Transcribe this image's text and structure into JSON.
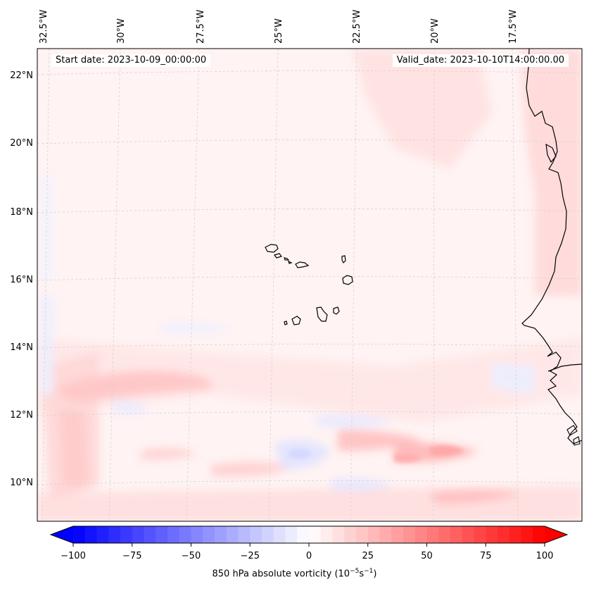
{
  "header": {
    "start_date": "Start date: 2023-10-09_00:00:00",
    "valid_date": "Valid_date: 2023-10-10T14:00:00.00"
  },
  "axes": {
    "longitude_labels": [
      "32.5°W",
      "30°W",
      "27.5°W",
      "25°W",
      "22.5°W",
      "20°W",
      "17.5°W"
    ],
    "latitude_labels": [
      "22°N",
      "20°N",
      "18°N",
      "16°N",
      "14°N",
      "12°N",
      "10°N"
    ],
    "gridlines": true
  },
  "colorbar": {
    "ticks": [
      "−100",
      "−75",
      "−50",
      "−25",
      "0",
      "25",
      "50",
      "75",
      "100"
    ],
    "range": [
      -100,
      100
    ],
    "extend": "both",
    "colormap": "bwr",
    "low_color": "#0000ff",
    "mid_color": "#ffffff",
    "high_color": "#ff0000",
    "label_main": "850 hPa absolute vorticity (10",
    "label_exp1": "−5",
    "label_mid": "s",
    "label_exp2": "−1",
    "label_end": ")"
  }
}
